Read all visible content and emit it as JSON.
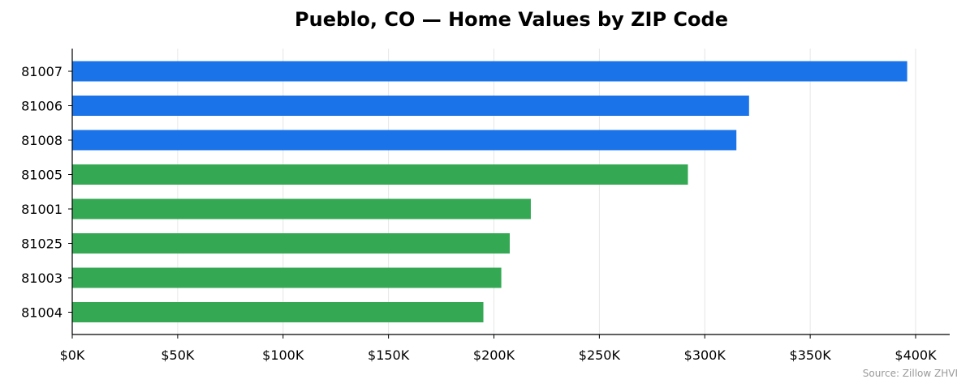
{
  "chart_data": {
    "type": "bar",
    "orientation": "horizontal",
    "title": "Pueblo, CO — Home Values by ZIP Code",
    "source": "Source: Zillow ZHVI",
    "xlim": [
      0,
      416000
    ],
    "x_ticks": [
      0,
      50000,
      100000,
      150000,
      200000,
      250000,
      300000,
      350000,
      400000
    ],
    "x_tick_labels": [
      "$0K",
      "$50K",
      "$100K",
      "$150K",
      "$200K",
      "$250K",
      "$300K",
      "$350K",
      "$400K"
    ],
    "grid": "vertical",
    "categories": [
      "81007",
      "81006",
      "81008",
      "81005",
      "81001",
      "81025",
      "81003",
      "81004"
    ],
    "values": [
      396000,
      321000,
      315000,
      292000,
      217500,
      207500,
      203500,
      195000
    ],
    "bar_colors": [
      "#1a73e8",
      "#1a73e8",
      "#1a73e8",
      "#34a853",
      "#34a853",
      "#34a853",
      "#34a853",
      "#34a853"
    ]
  }
}
